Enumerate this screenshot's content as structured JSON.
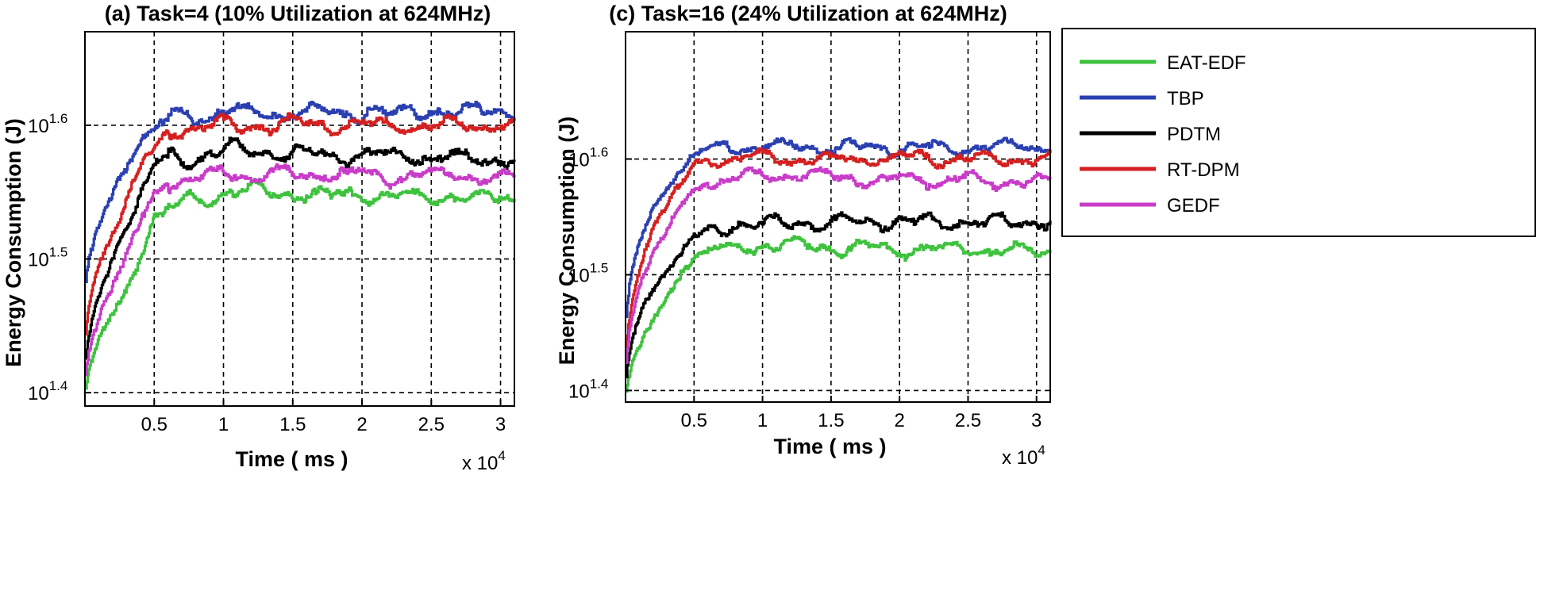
{
  "chart_data": [
    {
      "panel": "a",
      "type": "line",
      "title": "(a) Task=4 (10% Utilization at 624MHz)",
      "xlabel": "Time ( ms )",
      "ylabel": "Energy Consumption (J)",
      "x_multiplier_base": "x 10",
      "x_multiplier_exp": "4",
      "xlim": [
        0,
        3.1
      ],
      "ylim": [
        1.39,
        1.67
      ],
      "yscale": "log",
      "grid": true,
      "xticks": [
        0.5,
        1,
        1.5,
        2,
        2.5,
        3
      ],
      "xtick_labels": [
        "0.5",
        "1",
        "1.5",
        "2",
        "2.5",
        "3"
      ],
      "yticks": [
        1.4,
        1.5,
        1.6
      ],
      "ytick_base": "10",
      "ytick_exps": [
        "1.4",
        "1.5",
        "1.6"
      ],
      "series": [
        {
          "name": "EAT-EDF",
          "color": "#3ec23e",
          "start": 1.39,
          "rise": [
            [
              0.2,
              1.46
            ],
            [
              0.4,
              1.5
            ],
            [
              0.5,
              1.53
            ],
            [
              0.6,
              1.54
            ],
            [
              1.0,
              1.55
            ],
            [
              3.1,
              1.545
            ]
          ]
        },
        {
          "name": "TBP",
          "color": "#2a3fb0",
          "start": 1.47,
          "rise": [
            [
              0.2,
              1.55
            ],
            [
              0.4,
              1.59
            ],
            [
              0.5,
              1.6
            ],
            [
              0.6,
              1.605
            ],
            [
              1.0,
              1.61
            ],
            [
              3.1,
              1.61
            ]
          ]
        },
        {
          "name": "PDTM",
          "color": "#000000",
          "start": 1.41,
          "rise": [
            [
              0.2,
              1.5
            ],
            [
              0.4,
              1.55
            ],
            [
              0.5,
              1.57
            ],
            [
              0.6,
              1.575
            ],
            [
              1.0,
              1.58
            ],
            [
              3.1,
              1.575
            ]
          ]
        },
        {
          "name": "RT-DPM",
          "color": "#d42020",
          "start": 1.43,
          "rise": [
            [
              0.2,
              1.52
            ],
            [
              0.4,
              1.57
            ],
            [
              0.5,
              1.585
            ],
            [
              0.6,
              1.595
            ],
            [
              1.0,
              1.6
            ],
            [
              3.1,
              1.6
            ]
          ]
        },
        {
          "name": "GEDF",
          "color": "#c83cc8",
          "start": 1.4,
          "rise": [
            [
              0.2,
              1.48
            ],
            [
              0.4,
              1.53
            ],
            [
              0.5,
              1.55
            ],
            [
              0.6,
              1.555
            ],
            [
              1.0,
              1.565
            ],
            [
              3.1,
              1.56
            ]
          ]
        }
      ]
    },
    {
      "panel": "c",
      "type": "line",
      "title": "(c) Task=16 (24% Utilization at 624MHz)",
      "xlabel": "Time ( ms )",
      "ylabel": "Energy Consumption (J)",
      "x_multiplier_base": "x 10",
      "x_multiplier_exp": "4",
      "xlim": [
        0,
        3.1
      ],
      "ylim": [
        1.39,
        1.71
      ],
      "yscale": "log",
      "grid": true,
      "xticks": [
        0.5,
        1,
        1.5,
        2,
        2.5,
        3
      ],
      "xtick_labels": [
        "0.5",
        "1",
        "1.5",
        "2",
        "2.5",
        "3"
      ],
      "yticks": [
        1.4,
        1.5,
        1.6
      ],
      "ytick_base": "10",
      "ytick_exps": [
        "1.4",
        "1.5",
        "1.6"
      ],
      "series": [
        {
          "name": "EAT-EDF",
          "color": "#3ec23e",
          "start": 1.39,
          "rise": [
            [
              0.2,
              1.46
            ],
            [
              0.4,
              1.5
            ],
            [
              0.5,
              1.515
            ],
            [
              0.6,
              1.52
            ],
            [
              1.0,
              1.525
            ],
            [
              3.1,
              1.52
            ]
          ]
        },
        {
          "name": "TBP",
          "color": "#2a3fb0",
          "start": 1.45,
          "rise": [
            [
              0.2,
              1.56
            ],
            [
              0.4,
              1.59
            ],
            [
              0.5,
              1.605
            ],
            [
              0.6,
              1.61
            ],
            [
              1.0,
              1.61
            ],
            [
              3.1,
              1.61
            ]
          ]
        },
        {
          "name": "PDTM",
          "color": "#000000",
          "start": 1.4,
          "rise": [
            [
              0.2,
              1.49
            ],
            [
              0.4,
              1.52
            ],
            [
              0.5,
              1.535
            ],
            [
              0.6,
              1.54
            ],
            [
              1.0,
              1.545
            ],
            [
              3.1,
              1.545
            ]
          ]
        },
        {
          "name": "RT-DPM",
          "color": "#d42020",
          "start": 1.42,
          "rise": [
            [
              0.2,
              1.54
            ],
            [
              0.4,
              1.58
            ],
            [
              0.5,
              1.595
            ],
            [
              0.6,
              1.6
            ],
            [
              1.0,
              1.6
            ],
            [
              3.1,
              1.6
            ]
          ]
        },
        {
          "name": "GEDF",
          "color": "#c83cc8",
          "start": 1.41,
          "rise": [
            [
              0.2,
              1.52
            ],
            [
              0.4,
              1.56
            ],
            [
              0.5,
              1.575
            ],
            [
              0.6,
              1.58
            ],
            [
              1.0,
              1.585
            ],
            [
              3.1,
              1.58
            ]
          ]
        }
      ]
    }
  ],
  "legend": {
    "placement": "right",
    "entries": [
      {
        "name": "EAT-EDF",
        "color": "#3ec23e"
      },
      {
        "name": "TBP",
        "color": "#2a3fb0"
      },
      {
        "name": "PDTM",
        "color": "#000000"
      },
      {
        "name": "RT-DPM",
        "color": "#d42020"
      },
      {
        "name": "GEDF",
        "color": "#c83cc8"
      }
    ]
  }
}
